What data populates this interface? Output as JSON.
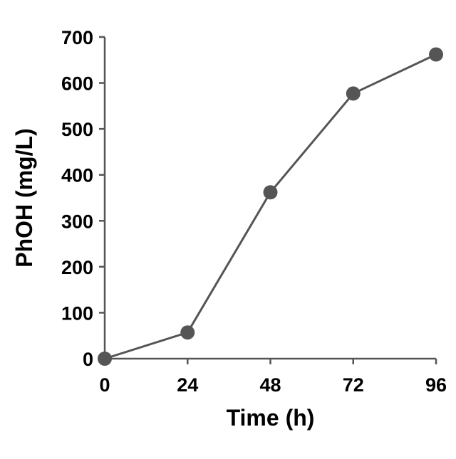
{
  "chart_data": {
    "type": "line",
    "title": "",
    "xlabel": "Time (h)",
    "ylabel": "PhOH (mg/L)",
    "x": [
      0,
      24,
      48,
      72,
      96
    ],
    "x_ticks": [
      "0",
      "24",
      "48",
      "72",
      "96"
    ],
    "xlim": [
      0,
      96
    ],
    "y_ticks": [
      "0",
      "100",
      "200",
      "300",
      "400",
      "500",
      "600",
      "700"
    ],
    "ylim": [
      0,
      700
    ],
    "grid": false,
    "legend": "none",
    "series": [
      {
        "values": [
          0,
          57,
          362,
          577,
          662
        ],
        "color": "#555555",
        "marker": "circle"
      }
    ]
  }
}
